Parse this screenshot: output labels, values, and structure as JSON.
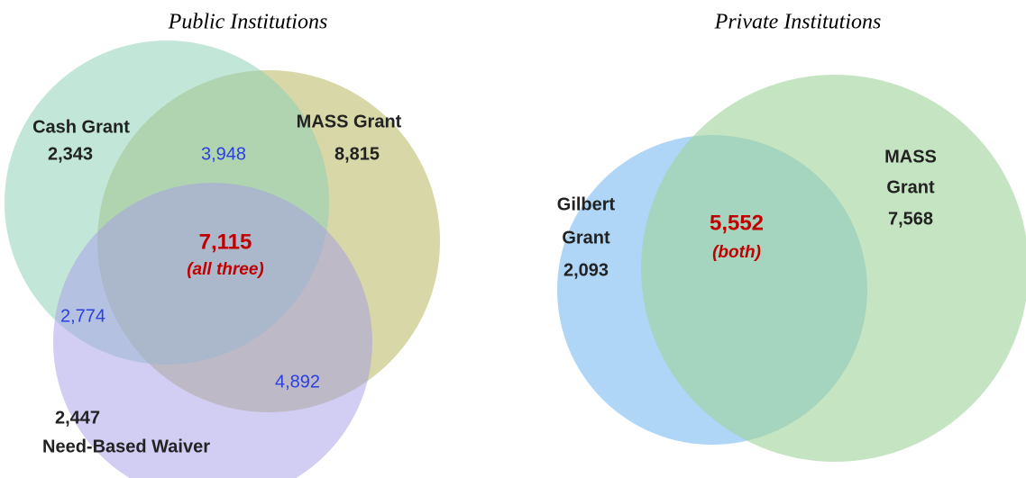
{
  "public": {
    "title": "Public Institutions",
    "cash": {
      "label": "Cash Grant",
      "only": "2,343"
    },
    "mass": {
      "label": "MASS Grant",
      "only": "8,815"
    },
    "need": {
      "label": "Need-Based Waiver",
      "only": "2,447"
    },
    "cash_mass": "3,948",
    "cash_need": "2,774",
    "mass_need": "4,892",
    "all": {
      "count": "7,115",
      "label": "(all three)"
    }
  },
  "private": {
    "title": "Private Institutions",
    "gilbert": {
      "label_lines": [
        "Gilbert",
        "Grant"
      ],
      "only": "2,093"
    },
    "mass": {
      "label_lines": [
        "MASS",
        "Grant"
      ],
      "only": "7,568"
    },
    "both": {
      "count": "5,552",
      "label": "(both)"
    }
  }
}
